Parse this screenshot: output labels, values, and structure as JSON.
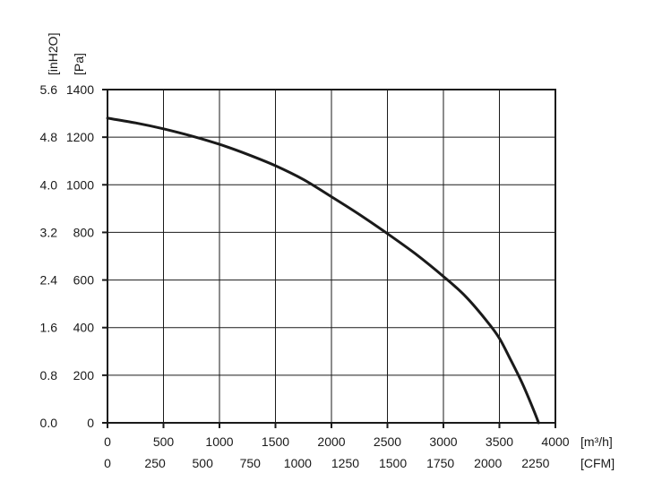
{
  "chart_data": {
    "type": "line",
    "title": "",
    "y_axes": [
      {
        "unit_label": "[Pa]",
        "range": [
          0,
          1400
        ],
        "ticks": [
          "0",
          "200",
          "400",
          "600",
          "800",
          "1000",
          "1200",
          "1400"
        ]
      },
      {
        "unit_label": "[inH2O]",
        "range": [
          0,
          5.6
        ],
        "ticks": [
          "0.0",
          "0.8",
          "1.6",
          "2.4",
          "3.2",
          "4.0",
          "4.8",
          "5.6"
        ]
      }
    ],
    "x_axes": [
      {
        "unit_label": "[m³/h]",
        "range": [
          0,
          4000
        ],
        "ticks": [
          "0",
          "500",
          "1000",
          "1500",
          "2000",
          "2500",
          "3000",
          "3500",
          "4000"
        ]
      },
      {
        "unit_label": "[CFM]",
        "range": [
          0,
          2250
        ],
        "ticks": [
          "0",
          "250",
          "500",
          "750",
          "1000",
          "1250",
          "1500",
          "1750",
          "2000",
          "2250"
        ]
      }
    ],
    "grid": true,
    "series": [
      {
        "x": [
          0,
          250,
          500,
          750,
          1000,
          1250,
          1500,
          1750,
          2000,
          2250,
          2500,
          2750,
          3000,
          3200,
          3400,
          3500,
          3600,
          3700,
          3800,
          3850
        ],
        "y": [
          1280,
          1260,
          1235,
          1205,
          1170,
          1128,
          1080,
          1022,
          950,
          875,
          795,
          710,
          615,
          530,
          420,
          355,
          265,
          170,
          60,
          0
        ]
      }
    ]
  }
}
